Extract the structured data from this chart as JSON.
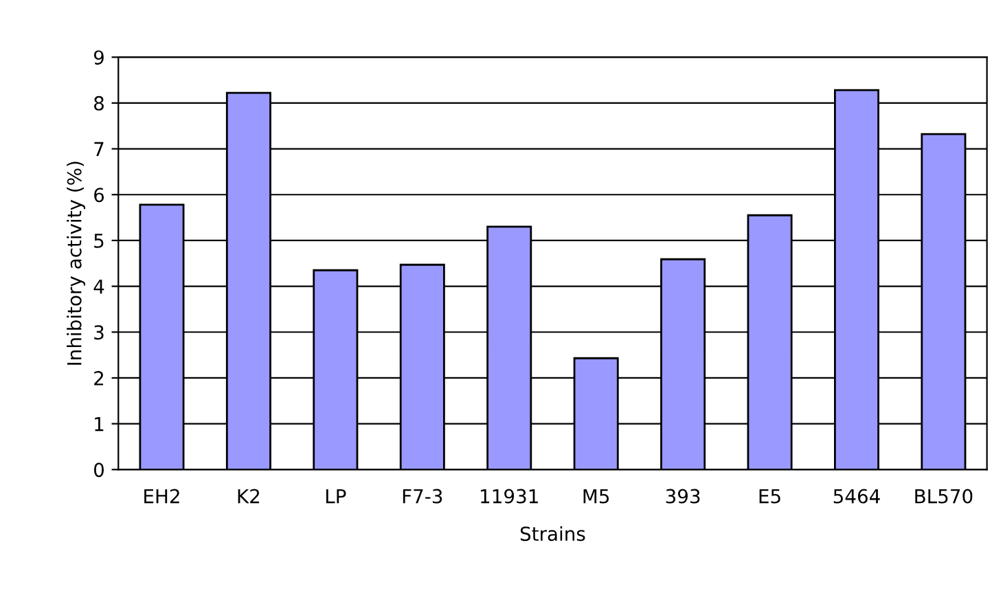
{
  "chart_data": {
    "type": "bar",
    "xlabel": "Strains",
    "ylabel": "Inhibitory activity (%)",
    "categories": [
      "EH2",
      "K2",
      "LP",
      "F7-3",
      "11931",
      "M5",
      "393",
      "E5",
      "5464",
      "BL570"
    ],
    "values": [
      5.78,
      8.22,
      4.35,
      4.47,
      5.3,
      2.43,
      4.59,
      5.55,
      8.28,
      7.32
    ],
    "color": "#9999ff",
    "ylim": [
      0,
      9
    ],
    "yticks": [
      0,
      1,
      2,
      3,
      4,
      5,
      6,
      7,
      8,
      9
    ],
    "grid": "y",
    "legend": false
  }
}
